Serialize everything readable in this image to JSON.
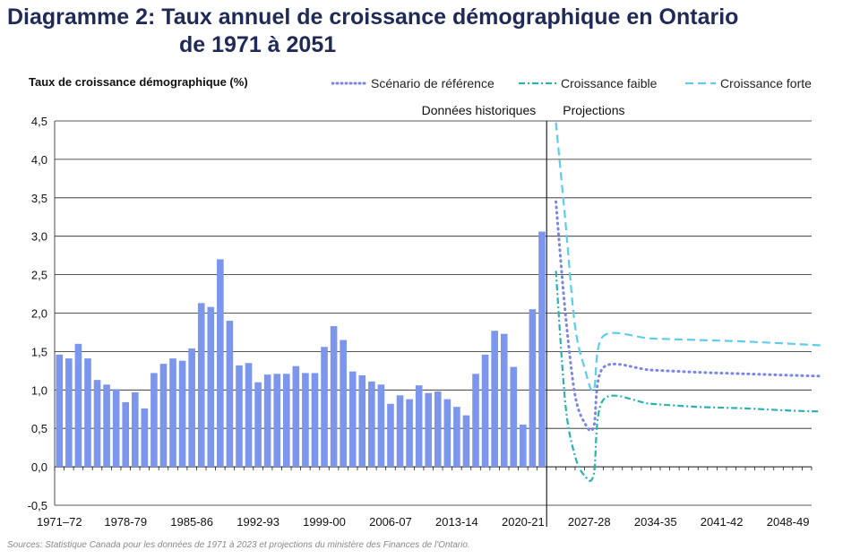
{
  "title": {
    "line1": "Diagramme 2: Taux annuel de croissance démographique en Ontario",
    "line2": "de 1971 à 2051"
  },
  "source": "Sources: Statistique Canada pour les données de 1971 à 2023 et projections du ministère des Finances de l'Ontario.",
  "colors": {
    "bar": "#7b96ec",
    "reference": "#7b86e4",
    "low": "#2ab2b0",
    "high": "#5bcdef",
    "title": "#1f2a57"
  },
  "chart_data": {
    "type": "bar",
    "ylabel": "Taux de croissance démographique (%)",
    "ylim": [
      -0.5,
      4.5
    ],
    "yticks": [
      "-0,5",
      "0,0",
      "0,5",
      "1,0",
      "1,5",
      "2,0",
      "2,5",
      "3,0",
      "3,5",
      "4,0",
      "4,5"
    ],
    "xtick_labels": [
      "1971–72",
      "1978-79",
      "1985-86",
      "1992-93",
      "1999-00",
      "2006-07",
      "2013-14",
      "2020-21",
      "2027-28",
      "2034-35",
      "2041-42",
      "2048-49"
    ],
    "section_labels": {
      "historical": "Données historiques",
      "projection": "Projections"
    },
    "historical": {
      "name": "Taux annuel",
      "periods": [
        "1971–72",
        "1972–73",
        "1973–74",
        "1974–75",
        "1975–76",
        "1976–77",
        "1977–78",
        "1978-79",
        "1979–80",
        "1980–81",
        "1981–82",
        "1982–83",
        "1983–84",
        "1984–85",
        "1985-86",
        "1986–87",
        "1987–88",
        "1988–89",
        "1989–90",
        "1990–91",
        "1991–92",
        "1992-93",
        "1993–94",
        "1994–95",
        "1995–96",
        "1996–97",
        "1997–98",
        "1998–99",
        "1999-00",
        "2000–01",
        "2001–02",
        "2002–03",
        "2003–04",
        "2004–05",
        "2005–06",
        "2006-07",
        "2007–08",
        "2008–09",
        "2009–10",
        "2010–11",
        "2011–12",
        "2012–13",
        "2013-14",
        "2014–15",
        "2015–16",
        "2016–17",
        "2017–18",
        "2018–19",
        "2019–20",
        "2020-21",
        "2021–22",
        "2022–23"
      ],
      "values": [
        1.46,
        1.41,
        1.6,
        1.41,
        1.13,
        1.07,
        1.01,
        0.84,
        0.97,
        0.76,
        1.22,
        1.34,
        1.41,
        1.38,
        1.54,
        2.13,
        2.08,
        2.7,
        1.9,
        1.32,
        1.35,
        1.1,
        1.2,
        1.21,
        1.21,
        1.31,
        1.22,
        1.22,
        1.56,
        1.83,
        1.65,
        1.24,
        1.19,
        1.11,
        1.07,
        0.82,
        0.93,
        0.88,
        1.06,
        0.96,
        0.98,
        0.88,
        0.78,
        0.67,
        1.21,
        1.46,
        1.77,
        1.73,
        1.3,
        0.55,
        2.05,
        3.06
      ]
    },
    "series": [
      {
        "name": "Scénario de référence",
        "style": "dotted",
        "x": [
          2023,
          2024,
          2025,
          2026,
          2027,
          2028,
          2033,
          2038,
          2043,
          2048,
          2051
        ],
        "values": [
          3.45,
          2.0,
          0.95,
          0.58,
          0.52,
          1.29,
          1.26,
          1.23,
          1.21,
          1.19,
          1.18
        ]
      },
      {
        "name": "Croissance faible",
        "style": "dash-dot",
        "x": [
          2023,
          2024,
          2025,
          2026,
          2027,
          2028,
          2033,
          2038,
          2043,
          2048,
          2051
        ],
        "values": [
          2.55,
          0.82,
          0.15,
          -0.11,
          -0.1,
          0.87,
          0.82,
          0.78,
          0.76,
          0.73,
          0.72
        ]
      },
      {
        "name": "Croissance forte",
        "style": "dashed",
        "x": [
          2023,
          2024,
          2025,
          2026,
          2027,
          2028,
          2033,
          2038,
          2043,
          2048,
          2051
        ],
        "values": [
          4.48,
          3.2,
          1.85,
          1.3,
          1.0,
          1.7,
          1.67,
          1.65,
          1.63,
          1.6,
          1.58
        ]
      }
    ]
  }
}
